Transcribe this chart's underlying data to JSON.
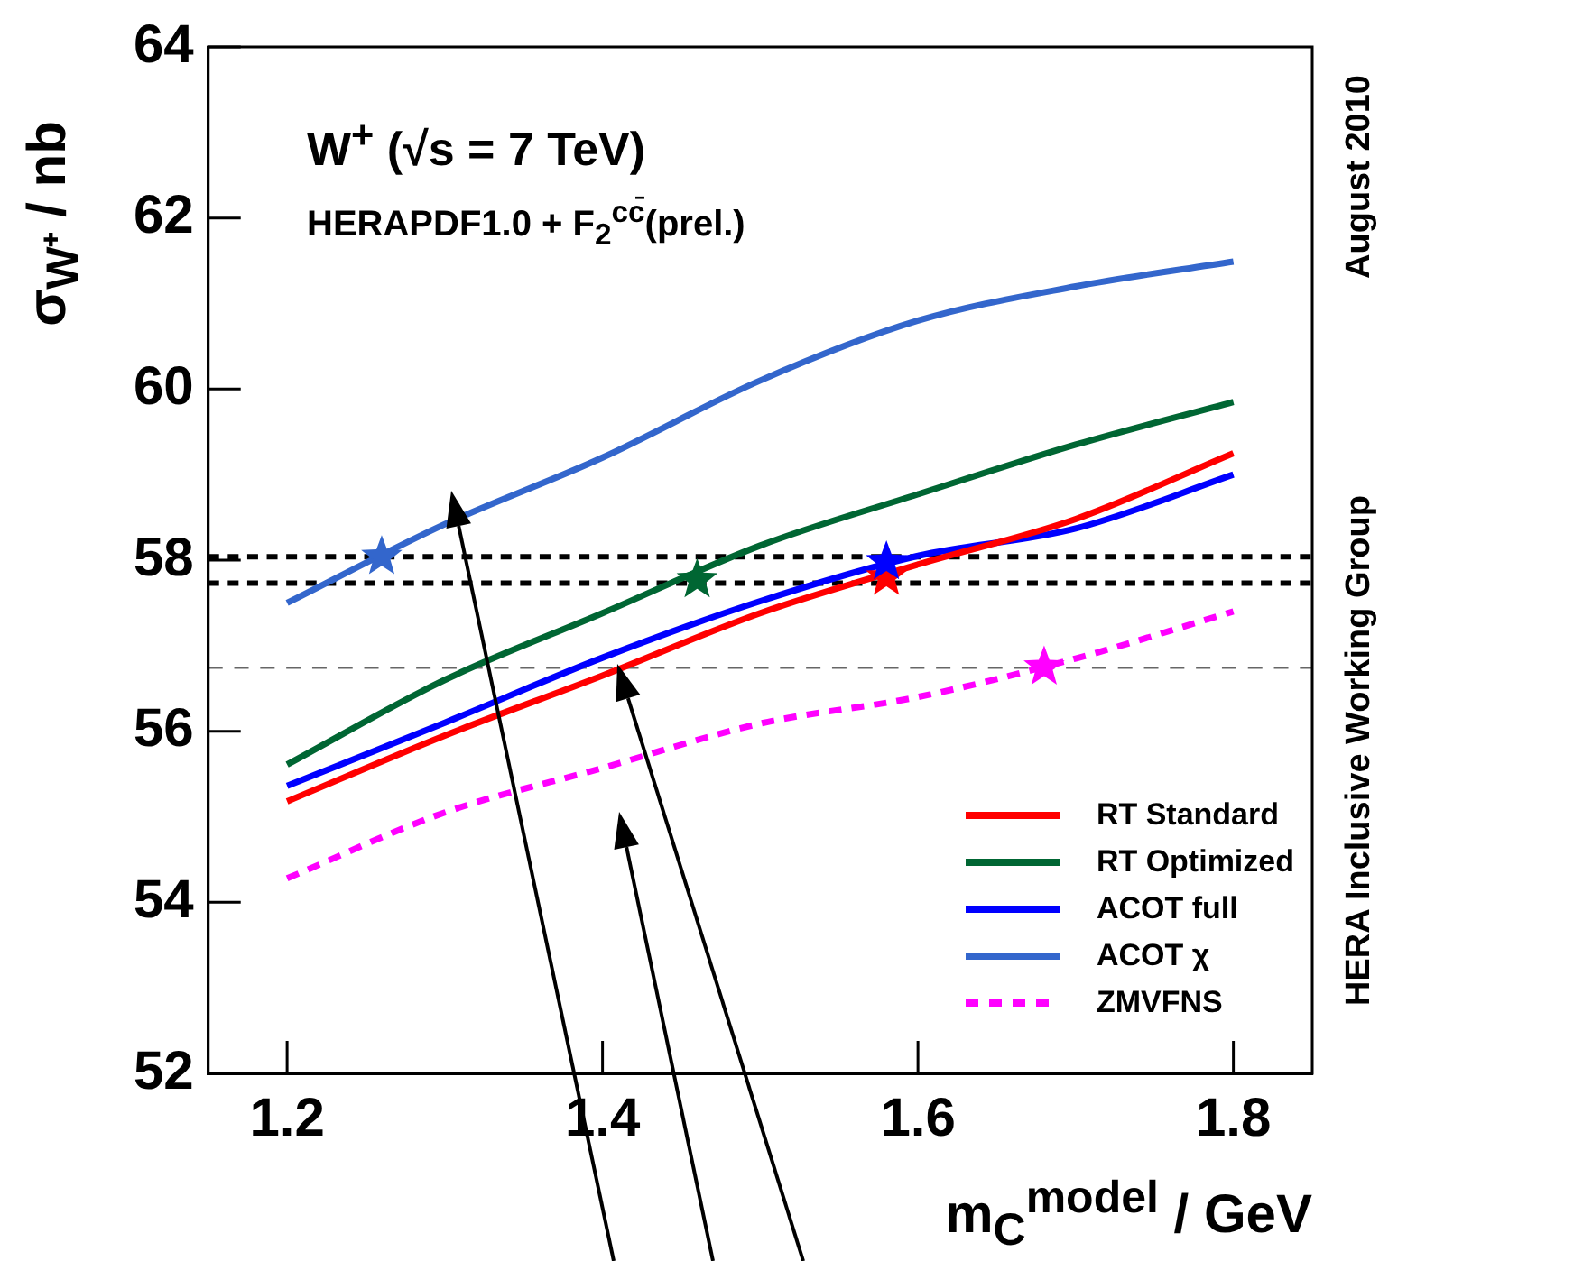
{
  "chart_data": {
    "type": "line",
    "xlabel": "m$_{C}$$^{model}$ / GeV",
    "ylabel": "σ$_{W⁺}$ / nb",
    "annotations": [
      "W$^{+}$ (√s = 7 TeV)",
      "HERAPDF1.0 + F$_{2}$$^{cc̄}$(prel.)",
      "August 2010",
      "HERA Inclusive Working Group"
    ],
    "x": [
      1.2,
      1.3,
      1.4,
      1.5,
      1.6,
      1.7,
      1.8
    ],
    "series": [
      {
        "name": "RT Standard",
        "color": "#ff0000",
        "values": [
          55.18,
          55.95,
          56.65,
          57.38,
          57.95,
          58.48,
          59.25
        ]
      },
      {
        "name": "RT Optimized",
        "color": "#006633",
        "values": [
          55.61,
          56.6,
          57.38,
          58.17,
          58.77,
          59.35,
          59.85
        ]
      },
      {
        "name": "ACOT full",
        "color": "#0000ff",
        "values": [
          55.36,
          56.1,
          56.86,
          57.52,
          58.05,
          58.37,
          59.0
        ]
      },
      {
        "name": "ACOT χ",
        "color": "#3366cc",
        "values": [
          57.5,
          58.42,
          59.2,
          60.1,
          60.8,
          61.2,
          61.49
        ]
      },
      {
        "name": "ZMVFNS",
        "color": "#ff00ff",
        "line_style": "dashed",
        "values": [
          54.28,
          55.05,
          55.57,
          56.09,
          56.4,
          56.85,
          57.4
        ]
      },
      {
        "type": "scatter",
        "marker": "star",
        "x": [
          1.26,
          1.46,
          1.58,
          1.58,
          1.68
        ],
        "values": [
          58.04,
          57.77,
          57.8,
          57.98,
          56.75
        ],
        "colors": [
          "#3366cc",
          "#006633",
          "#ff0000",
          "#0000ff",
          "#ff00ff"
        ]
      }
    ],
    "xlim": [
      1.15,
      1.85
    ],
    "xticks": [
      1.2,
      1.4,
      1.6,
      1.8
    ],
    "ylim": [
      52,
      64
    ],
    "yticks": [
      52,
      54,
      56,
      58,
      60,
      62,
      64
    ],
    "ref_lines": [
      {
        "axis": "y",
        "value": 58.04,
        "color": "#000000",
        "line_style": "dashed"
      },
      {
        "axis": "y",
        "value": 57.73,
        "color": "#000000",
        "line_style": "dashed"
      },
      {
        "axis": "y",
        "value": 56.74,
        "color": "#666666",
        "line_style": "dashed"
      }
    ],
    "grid": false,
    "legend": "bottom right",
    "marker": "none",
    "line_style": "solid"
  }
}
